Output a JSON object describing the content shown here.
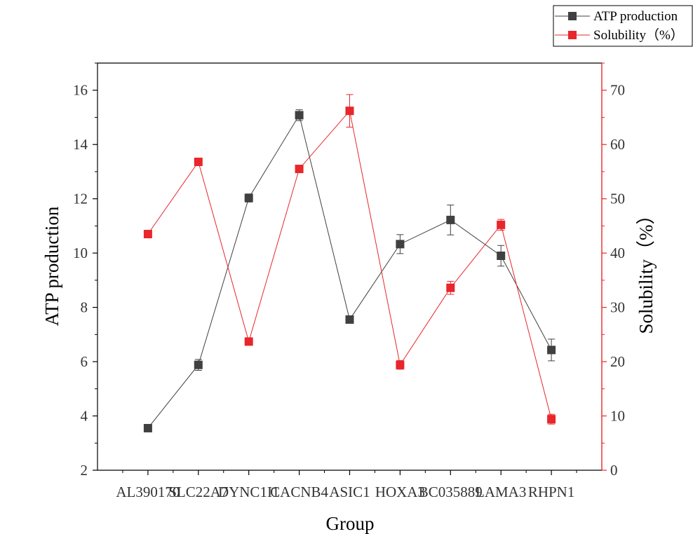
{
  "chart_data": {
    "type": "line",
    "xlabel": "Group",
    "categories": [
      "AL390170",
      "SLC22A7",
      "DYNC1I1",
      "CACNB4",
      "ASIC1",
      "HOXA3",
      "BC035889",
      "LAMA3",
      "RHPN1"
    ],
    "y_left": {
      "label": "ATP production",
      "range": [
        2,
        17
      ],
      "ticks": [
        2,
        4,
        6,
        8,
        10,
        12,
        14,
        16
      ],
      "color": "#000000"
    },
    "y_right": {
      "label": "Solubility（%）",
      "range": [
        0,
        75
      ],
      "ticks": [
        0,
        10,
        20,
        30,
        40,
        50,
        60,
        70
      ],
      "color": "#e8262b"
    },
    "series": [
      {
        "name": "ATP production",
        "axis": "left",
        "color": "#404040",
        "marker": "square",
        "values": [
          3.55,
          5.88,
          12.03,
          15.08,
          7.55,
          10.33,
          11.22,
          9.9,
          6.43
        ],
        "errors": [
          0.08,
          0.2,
          0.15,
          0.2,
          0.12,
          0.35,
          0.55,
          0.38,
          0.4
        ]
      },
      {
        "name": "Solubility（%）",
        "axis": "right",
        "color": "#e8262b",
        "marker": "square",
        "values": [
          43.5,
          56.8,
          23.7,
          55.5,
          66.2,
          19.4,
          33.6,
          45.2,
          9.4
        ],
        "errors": [
          0.3,
          0.4,
          0.5,
          0.3,
          3.0,
          0.8,
          1.2,
          1.0,
          0.9
        ]
      }
    ],
    "legend": {
      "position": "top-right",
      "entries": [
        "ATP production",
        "Solubility（%）"
      ]
    },
    "grid": false
  }
}
